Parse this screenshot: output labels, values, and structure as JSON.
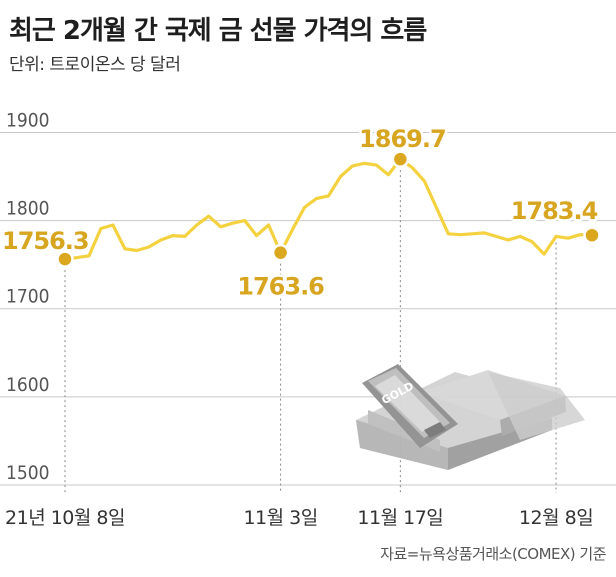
{
  "title": "최근 2개월 간 국제 금 선물 가격의 흐름",
  "subtitle": "단위: 트로이온스 당 달러",
  "source": "자료=뉴욕상품거래소(COMEX) 기준",
  "colors": {
    "line": "#f4d23f",
    "marker": "#dba71f",
    "label": "#d8a520",
    "grid": "#c8c8c8"
  },
  "chart_data": {
    "type": "line",
    "title": "최근 2개월 간 국제 금 선물 가격의 흐름",
    "ylabel": "단위: 트로이온스 당 달러",
    "ylim": [
      1500,
      1930
    ],
    "yticks": [
      1500,
      1600,
      1700,
      1800,
      1900
    ],
    "grid": true,
    "x_tick_labels": [
      {
        "index": 0,
        "label": "21년 10월 8일"
      },
      {
        "index": 18,
        "label": "11월 3일"
      },
      {
        "index": 28,
        "label": "11월 17일"
      },
      {
        "index": 41,
        "label": "12월 8일"
      }
    ],
    "series": [
      {
        "values": [
          1756.3,
          1758,
          1760,
          1791,
          1795,
          1768,
          1766,
          1770,
          1778,
          1783,
          1782,
          1795,
          1805,
          1793,
          1797,
          1800,
          1783,
          1795,
          1763.6,
          1790,
          1815,
          1825,
          1828,
          1850,
          1862,
          1865,
          1863,
          1852,
          1869.7,
          1860,
          1845,
          1815,
          1785,
          1784,
          1785,
          1786,
          1782,
          1778,
          1782,
          1776,
          1762,
          1782,
          1780,
          1784,
          1783.4
        ]
      }
    ],
    "data_labels": [
      {
        "index": 0,
        "text": "1756.3"
      },
      {
        "index": 18,
        "text": "1763.6"
      },
      {
        "index": 28,
        "text": "1869.7"
      },
      {
        "index": 44,
        "text": "1783.4"
      }
    ]
  },
  "illustration": {
    "bar_text": "GOLD"
  }
}
